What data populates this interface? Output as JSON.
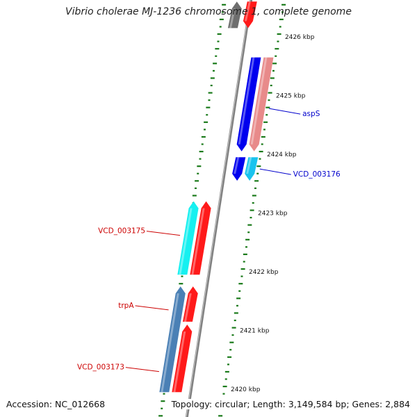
{
  "title": "Vibrio cholerae MJ-1236 chromosome 1, complete genome",
  "accession": "Accession: NC_012668",
  "summary": "Topology: circular; Length: 3,149,584 bp; Genes: 2,884",
  "colors": {
    "backbone": "#808080",
    "tick": "#1a7a1a",
    "forward_label": "#cc0000",
    "reverse_label": "#0000cc",
    "red": "#ff1a1a",
    "pink": "#e88a8a",
    "blue": "#0000ee",
    "cyan": "#19c3ee",
    "aqua": "#16f0f0",
    "steel": "#4a80b5",
    "grey": "#6e6e6e"
  },
  "scale": {
    "unit": "kbp",
    "ticks": [
      {
        "kbp": 2426,
        "label": "2426 kbp"
      },
      {
        "kbp": 2425,
        "label": "2425 kbp"
      },
      {
        "kbp": 2424,
        "label": "2424 kbp"
      },
      {
        "kbp": 2423,
        "label": "2423 kbp"
      },
      {
        "kbp": 2422,
        "label": "2422 kbp"
      },
      {
        "kbp": 2421,
        "label": "2421 kbp"
      },
      {
        "kbp": 2420,
        "label": "2420 kbp"
      }
    ]
  },
  "features": [
    {
      "id": "gene-grey-top",
      "color": "grey",
      "start": 2426.15,
      "end": 2426.6,
      "lane": 1
    },
    {
      "id": "gene-red-top",
      "color": "red",
      "start": 2426.15,
      "end": 2426.6,
      "lane": 0
    },
    {
      "id": "gene-blue-asps",
      "color": "blue",
      "start": 2424.05,
      "end": 2425.65,
      "lane": -1
    },
    {
      "id": "gene-pink-asps",
      "color": "pink",
      "start": 2424.05,
      "end": 2425.65,
      "lane": -2
    },
    {
      "id": "gene-blue-176",
      "color": "blue",
      "start": 2423.55,
      "end": 2423.95,
      "lane": -1
    },
    {
      "id": "gene-cyan-176",
      "color": "cyan",
      "start": 2423.55,
      "end": 2423.95,
      "lane": -2
    },
    {
      "id": "gene-aqua-175",
      "color": "aqua",
      "start": 2421.95,
      "end": 2423.2,
      "lane": 2
    },
    {
      "id": "gene-red-175",
      "color": "red",
      "start": 2421.95,
      "end": 2423.2,
      "lane": 1
    },
    {
      "id": "gene-steel-trpa",
      "color": "steel",
      "start": 2419.95,
      "end": 2421.75,
      "lane": 2
    },
    {
      "id": "gene-red-trpa",
      "color": "red",
      "start": 2421.15,
      "end": 2421.75,
      "lane": 1
    },
    {
      "id": "gene-red-173",
      "color": "red",
      "start": 2419.95,
      "end": 2421.1,
      "lane": 1
    }
  ],
  "labels": [
    {
      "text": "aspS",
      "color": "reverse_label",
      "kbp": 2424.78,
      "side": "right",
      "lane": -2
    },
    {
      "text": "VCD_003176",
      "color": "reverse_label",
      "kbp": 2423.75,
      "side": "right",
      "lane": -2
    },
    {
      "text": "VCD_003175",
      "color": "forward_label",
      "kbp": 2422.62,
      "side": "left",
      "lane": 2
    },
    {
      "text": "trpA",
      "color": "forward_label",
      "kbp": 2421.35,
      "side": "left",
      "lane": 2
    },
    {
      "text": "VCD_003173",
      "color": "forward_label",
      "kbp": 2420.3,
      "side": "left",
      "lane": 2
    }
  ]
}
